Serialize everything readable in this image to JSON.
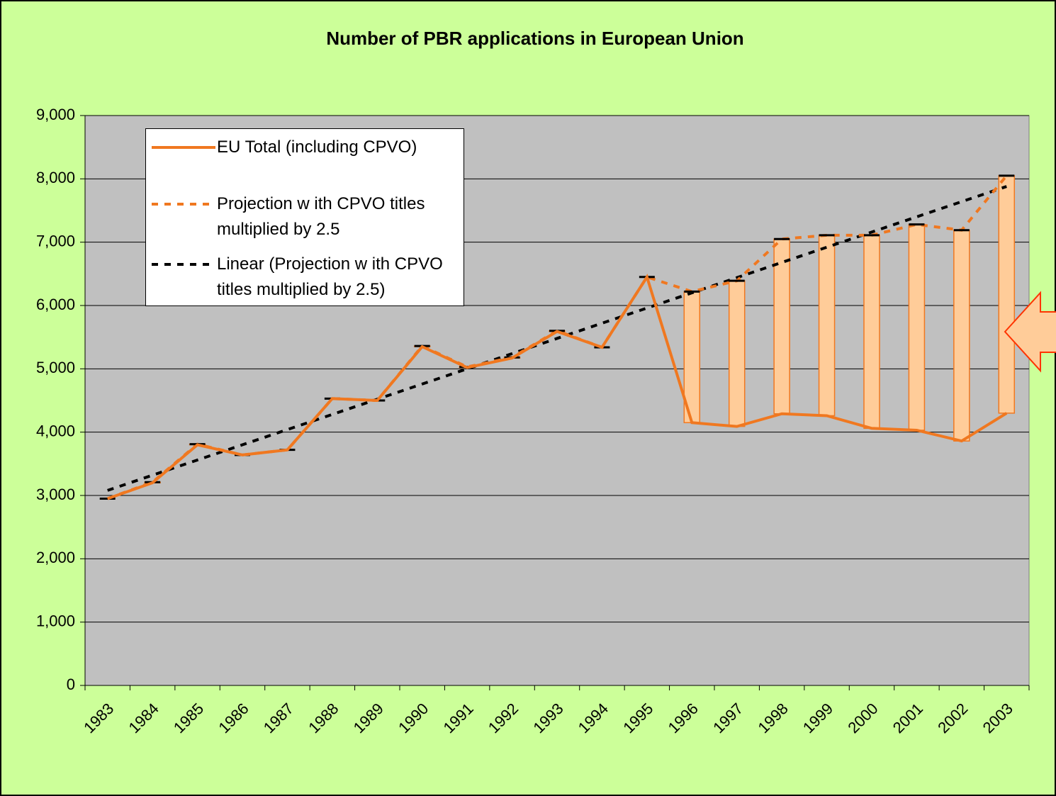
{
  "chart_data": {
    "type": "line",
    "title": "Number of PBR applications in European Union",
    "categories": [
      "1983",
      "1984",
      "1985",
      "1986",
      "1987",
      "1988",
      "1989",
      "1990",
      "1991",
      "1992",
      "1993",
      "1994",
      "1995",
      "1996",
      "1997",
      "1998",
      "1999",
      "2000",
      "2001",
      "2002",
      "2003"
    ],
    "ylim": [
      0,
      9000
    ],
    "yticks": [
      0,
      {
        "value": 1000,
        "label": "1,000"
      },
      {
        "value": 2000,
        "label": "2,000"
      },
      {
        "value": 3000,
        "label": "3,000"
      },
      {
        "value": 4000,
        "label": "4,000"
      },
      {
        "value": 5000,
        "label": "5,000"
      },
      {
        "value": 6000,
        "label": "6,000"
      },
      {
        "value": 7000,
        "label": "7,000"
      },
      {
        "value": 8000,
        "label": "8,000"
      },
      {
        "value": 9000,
        "label": "9,000"
      }
    ],
    "grid": true,
    "range_bars": {
      "color": "#ffcc99",
      "border": "#f07820"
    },
    "series": [
      {
        "name": "EU Total (including CPVO)",
        "color": "#f07820",
        "style": "solid",
        "values": [
          2950,
          3200,
          3800,
          3640,
          3720,
          4530,
          4500,
          5350,
          5020,
          5170,
          5590,
          5340,
          6450,
          4150,
          4090,
          4290,
          4260,
          4060,
          4030,
          3860,
          4300
        ]
      },
      {
        "name": "Projection w ith CPVO titles multiplied by 2.5",
        "color": "#f07820",
        "style": "dashed",
        "marker": "#000000",
        "values": [
          2950,
          3210,
          3810,
          3640,
          3720,
          4530,
          4500,
          5360,
          5030,
          5180,
          5600,
          5340,
          6450,
          6220,
          6390,
          7050,
          7110,
          7110,
          7280,
          7190,
          8050
        ]
      },
      {
        "name": "Linear (Projection w ith CPVO titles multiplied by 2.5)",
        "color": "#000000",
        "style": "dashed",
        "values": [
          3080,
          3320,
          3560,
          3800,
          4040,
          4280,
          4520,
          4760,
          5000,
          5240,
          5480,
          5720,
          5960,
          6200,
          6440,
          6680,
          6920,
          7160,
          7400,
          7640,
          7880
        ]
      }
    ]
  }
}
